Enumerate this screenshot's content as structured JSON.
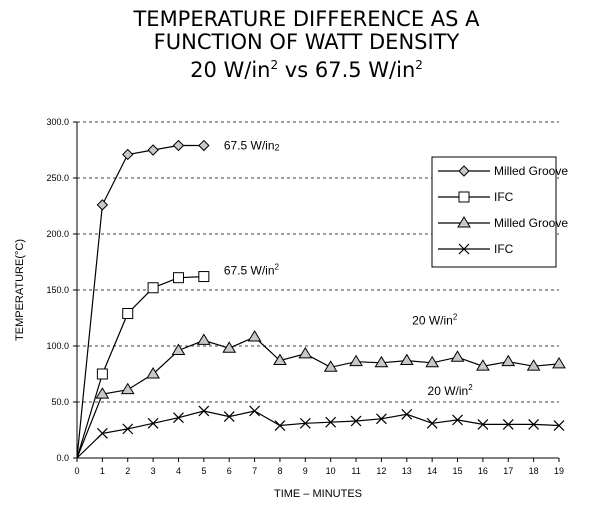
{
  "title": {
    "line1": "TEMPERATURE DIFFERENCE AS A",
    "line2": "FUNCTION OF WATT DENSITY",
    "line3_a": "20 W/in",
    "line3_a_sup": "2",
    "line3_b": " vs 67.5 W/in",
    "line3_b_sup": "2"
  },
  "chart_data": {
    "type": "line",
    "xlabel": "TIME – MINUTES",
    "ylabel": "TEMPERATURE(°C)",
    "xlim": [
      0,
      19
    ],
    "ylim": [
      0,
      300
    ],
    "x_ticks": [
      "0",
      "1",
      "2",
      "3",
      "4",
      "5",
      "6",
      "7",
      "8",
      "9",
      "10",
      "11",
      "12",
      "13",
      "14",
      "15",
      "16",
      "17",
      "18",
      "19"
    ],
    "y_ticks": [
      "0.0",
      "50.0",
      "100.0",
      "150.0",
      "200.0",
      "250.0",
      "300.0"
    ],
    "grid": "horizontal dashed",
    "legend_position": "right",
    "series": [
      {
        "name": "Milled Groove",
        "marker": "diamond",
        "marker_fill": "#c8c8c8",
        "x": [
          0,
          1,
          2,
          3,
          4,
          5
        ],
        "y": [
          0,
          226,
          271,
          275,
          279,
          279
        ]
      },
      {
        "name": "IFC",
        "marker": "square",
        "marker_fill": "#ffffff",
        "x": [
          0,
          1,
          2,
          3,
          4,
          5
        ],
        "y": [
          0,
          75,
          129,
          152,
          161,
          162
        ]
      },
      {
        "name": "Milled Groove",
        "marker": "triangle",
        "marker_fill": "#c8c8c8",
        "x": [
          0,
          1,
          2,
          3,
          4,
          5,
          6,
          7,
          8,
          9,
          10,
          11,
          12,
          13,
          14,
          15,
          16,
          17,
          18,
          19
        ],
        "y": [
          0,
          57,
          61,
          75,
          96,
          105,
          98,
          108,
          87,
          93,
          81,
          86,
          85,
          87,
          85,
          90,
          82,
          86,
          82,
          84
        ]
      },
      {
        "name": "IFC",
        "marker": "x",
        "marker_fill": "none",
        "x": [
          0,
          1,
          2,
          3,
          4,
          5,
          6,
          7,
          8,
          9,
          10,
          11,
          12,
          13,
          14,
          15,
          16,
          17,
          18,
          19
        ],
        "y": [
          0,
          22,
          26,
          31,
          36,
          42,
          37,
          42,
          29,
          31,
          32,
          33,
          35,
          39,
          31,
          34,
          30,
          30,
          30,
          29
        ]
      }
    ],
    "annotations": [
      {
        "text": "67.5 W/in",
        "sup": "2",
        "sub_style": true,
        "near_x": 5,
        "near_y": 279
      },
      {
        "text": "67.5 W/in",
        "sup": "2",
        "sub_style": false,
        "near_x": 5,
        "near_y": 162
      },
      {
        "text": "20 W/in",
        "sup": "2",
        "sub_style": false,
        "near_x": 14,
        "near_y": 105
      },
      {
        "text": "20 W/in",
        "sup": "2",
        "sub_style": false,
        "near_x": 15,
        "near_y": 50
      }
    ],
    "colors": {
      "line": "#000000",
      "grid": "#000000"
    }
  }
}
